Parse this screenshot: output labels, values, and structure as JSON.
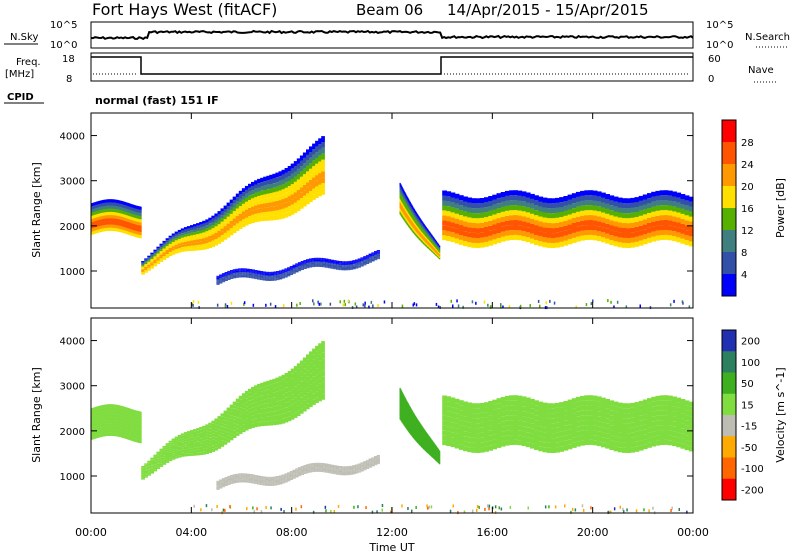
{
  "header": {
    "station": "Fort Hays West (fitACF)",
    "beam": "Beam 06",
    "date_range": "14/Apr/2015 - 15/Apr/2015"
  },
  "status_panels": {
    "nsky": {
      "label": "N.Sky",
      "ticks_left": [
        "10^5",
        "10^0"
      ],
      "right_label": "N.Search",
      "ticks_right": [
        "10^5",
        "10^0"
      ]
    },
    "freq": {
      "label": "Freq.",
      "unit": "[MHz]",
      "ticks_left": [
        "18",
        "8"
      ],
      "right_label": "Nave",
      "ticks_right": [
        "60",
        "0"
      ]
    },
    "cpid": {
      "label": "CPID",
      "text": "normal (fast) 151 IF"
    }
  },
  "colors": {
    "power_scale": [
      "#0000ff",
      "#3350a8",
      "#3f7f7f",
      "#56b000",
      "#ffe000",
      "#ff9900",
      "#ff5500",
      "#ff0000"
    ],
    "velocity_scale": [
      "#2030b0",
      "#2c8060",
      "#3eb020",
      "#80dd40",
      "#bdbdb4",
      "#ffaa00",
      "#ff6600",
      "#ff0000"
    ]
  },
  "chart_data": [
    {
      "type": "heatmap",
      "name": "Power",
      "ylabel": "Slant Range [km]",
      "xlabel": "Time UT",
      "ylim": [
        180,
        4500
      ],
      "x_ticks": [
        "00:00",
        "04:00",
        "08:00",
        "12:00",
        "16:00",
        "20:00",
        "00:00"
      ],
      "y_ticks": [
        1000,
        2000,
        3000,
        4000
      ],
      "colorbar": {
        "label": "Power [dB]",
        "ticks": [
          "4",
          "8",
          "12",
          "16",
          "20",
          "24",
          "28"
        ]
      },
      "bands": [
        {
          "t0": 0.0,
          "t1": 2.0,
          "r_low": 1800,
          "r_high": 2500,
          "peak": 24
        },
        {
          "t0": 2.0,
          "t1": 9.3,
          "r_low_start": 1000,
          "r_low_end": 2600,
          "r_high_start": 1300,
          "r_high_end": 3900,
          "peak": 22
        },
        {
          "t0": 5.0,
          "t1": 11.5,
          "r_low_start": 700,
          "r_low_end": 1200,
          "r_high_start": 900,
          "r_high_end": 1400,
          "peak": 6
        },
        {
          "t0": 12.3,
          "t1": 13.9,
          "r_low_start": 2300,
          "r_low_end": 1200,
          "r_high_start": 3000,
          "r_high_end": 1500,
          "peak": 21
        },
        {
          "t0": 14.0,
          "t1": 24.0,
          "r_low": 1600,
          "r_high": 2700,
          "peak": 24
        }
      ]
    },
    {
      "type": "heatmap",
      "name": "Velocity",
      "ylabel": "Slant Range [km]",
      "xlabel": "Time UT",
      "ylim": [
        180,
        4500
      ],
      "x_ticks": [
        "00:00",
        "04:00",
        "08:00",
        "12:00",
        "16:00",
        "20:00",
        "00:00"
      ],
      "y_ticks": [
        1000,
        2000,
        3000,
        4000
      ],
      "colorbar": {
        "label": "Velocity [m s^-1]",
        "ticks": [
          "200",
          "100",
          "50",
          "15",
          "-15",
          "-50",
          "-100",
          "-200"
        ]
      },
      "bands": [
        {
          "t0": 0.0,
          "t1": 2.0,
          "r_low": 1800,
          "r_high": 2500,
          "velocity": 0
        },
        {
          "t0": 2.0,
          "t1": 9.3,
          "r_low_start": 1000,
          "r_low_end": 2600,
          "r_high_start": 1300,
          "r_high_end": 3900,
          "velocity": 0
        },
        {
          "t0": 5.0,
          "t1": 11.5,
          "r_low_start": 700,
          "r_low_end": 1200,
          "r_high_start": 900,
          "r_high_end": 1400,
          "velocity": -40
        },
        {
          "t0": 12.3,
          "t1": 13.9,
          "r_low_start": 2300,
          "r_low_end": 1200,
          "r_high_start": 3000,
          "r_high_end": 1500,
          "velocity": 40
        },
        {
          "t0": 14.0,
          "t1": 24.0,
          "r_low": 1600,
          "r_high": 2700,
          "velocity": 0
        }
      ]
    }
  ]
}
